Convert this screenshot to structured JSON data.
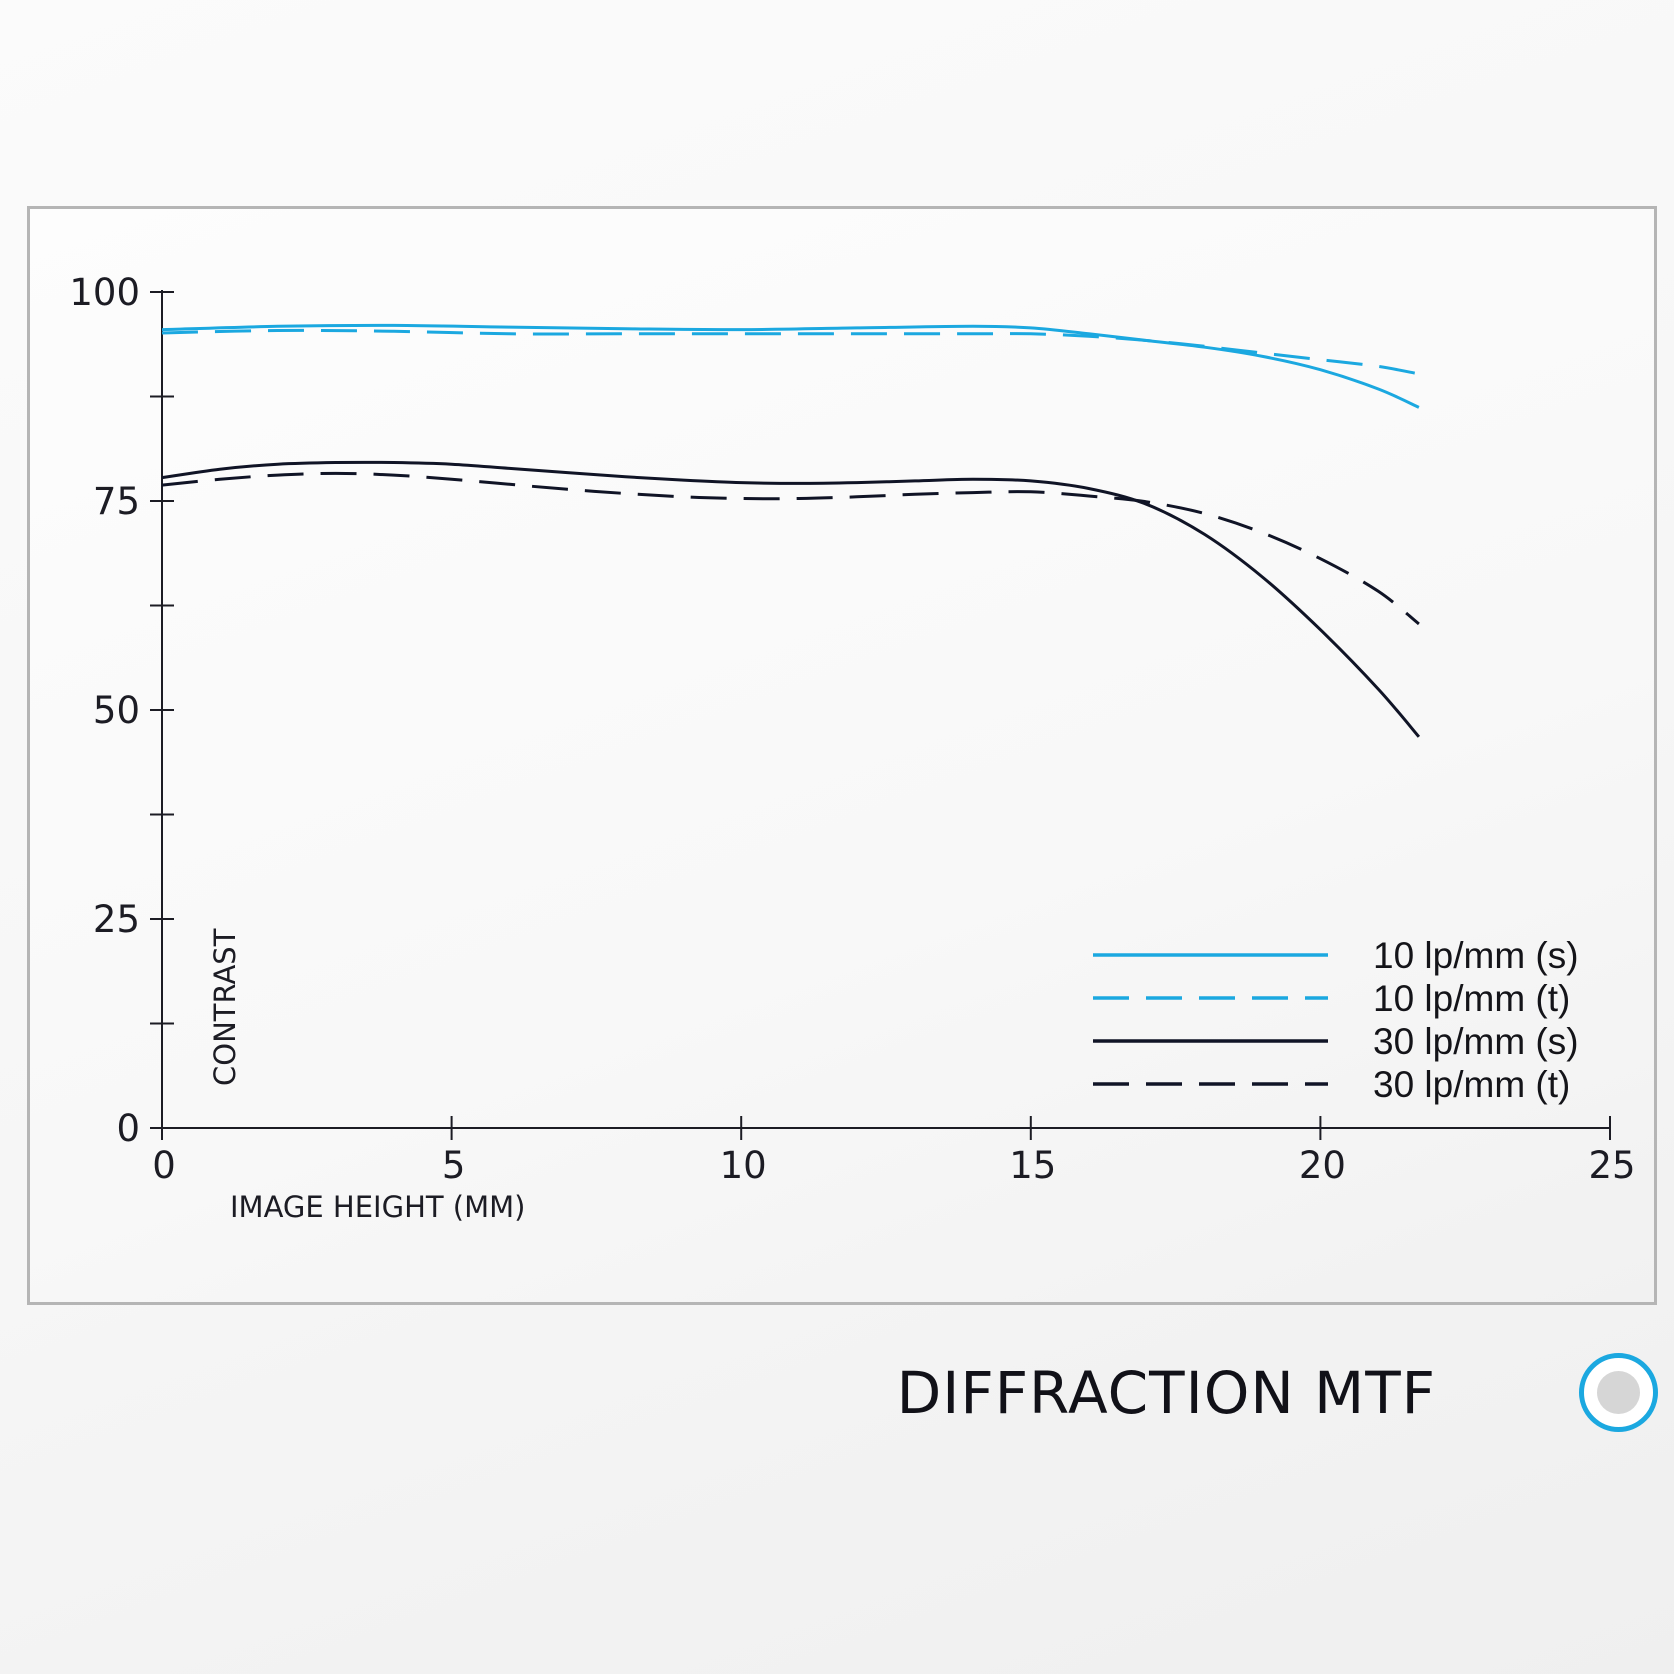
{
  "footer": {
    "title": "DIFFRACTION MTF"
  },
  "chart_data": {
    "type": "line",
    "title": "",
    "xlabel": "IMAGE HEIGHT (MM)",
    "ylabel": "CONTRAST",
    "xlim": [
      0,
      25
    ],
    "ylim": [
      0,
      100
    ],
    "x_ticks": [
      0,
      5,
      10,
      15,
      20,
      25
    ],
    "y_major_ticks": [
      0,
      25,
      50,
      75,
      100
    ],
    "y_minor_ticks": [
      12.5,
      37.5,
      62.5,
      87.5
    ],
    "grid": false,
    "legend_position": "bottom-right",
    "colors": {
      "blue": "#1ba8e0",
      "dark": "#101426",
      "axis": "#1c1c24"
    },
    "series": [
      {
        "name": "10 lp/mm (s)",
        "color": "#1ba8e0",
        "dash": "solid",
        "x": [
          0,
          2,
          4,
          6,
          8,
          10,
          12,
          14,
          15,
          16,
          17,
          18,
          19,
          20,
          21,
          21.7
        ],
        "y": [
          95.5,
          95.9,
          96.0,
          95.8,
          95.6,
          95.5,
          95.7,
          95.9,
          95.7,
          95.0,
          94.2,
          93.4,
          92.3,
          90.7,
          88.4,
          86.2
        ]
      },
      {
        "name": "10 lp/mm (t)",
        "color": "#1ba8e0",
        "dash": "dashed",
        "x": [
          0,
          2,
          4,
          6,
          8,
          10,
          12,
          14,
          15,
          16,
          17,
          18,
          19,
          20,
          21,
          21.7
        ],
        "y": [
          95.1,
          95.4,
          95.3,
          95.0,
          95.0,
          95.0,
          95.0,
          95.0,
          95.0,
          94.7,
          94.2,
          93.5,
          92.7,
          91.9,
          91.1,
          90.2
        ]
      },
      {
        "name": "30 lp/mm (s)",
        "color": "#101426",
        "dash": "solid",
        "x": [
          0,
          1,
          2,
          3,
          4,
          5,
          6,
          7,
          8,
          9,
          10,
          11,
          12,
          13,
          14,
          15,
          16,
          17,
          18,
          19,
          20,
          21,
          21.7
        ],
        "y": [
          77.8,
          78.8,
          79.4,
          79.6,
          79.6,
          79.4,
          78.9,
          78.4,
          77.9,
          77.5,
          77.2,
          77.1,
          77.2,
          77.4,
          77.6,
          77.4,
          76.5,
          74.6,
          71.0,
          65.9,
          59.6,
          52.5,
          46.8
        ]
      },
      {
        "name": "30 lp/mm (t)",
        "color": "#101426",
        "dash": "dashed",
        "x": [
          0,
          1,
          2,
          3,
          4,
          5,
          6,
          7,
          8,
          9,
          10,
          11,
          12,
          13,
          14,
          15,
          16,
          17,
          18,
          19,
          20,
          21,
          21.7
        ],
        "y": [
          76.9,
          77.6,
          78.1,
          78.3,
          78.1,
          77.6,
          77.0,
          76.4,
          75.9,
          75.5,
          75.3,
          75.3,
          75.5,
          75.8,
          76.0,
          76.1,
          75.6,
          74.9,
          73.5,
          71.2,
          68.1,
          64.2,
          60.3
        ]
      }
    ]
  }
}
